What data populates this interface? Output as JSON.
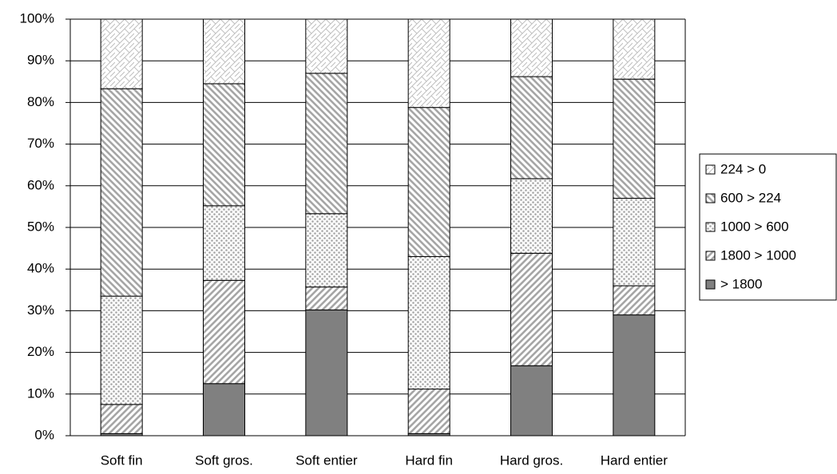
{
  "chart_data": {
    "type": "stacked_bar_100",
    "categories": [
      "Soft fin",
      "Soft gros.",
      "Soft entier",
      "Hard fin",
      "Hard gros.",
      "Hard entier"
    ],
    "series": [
      {
        "name": "> 1800",
        "color": "#808080",
        "pattern": "solid",
        "values": [
          0.5,
          12.5,
          30.2,
          0.5,
          16.8,
          29
        ]
      },
      {
        "name": "1800 > 1000",
        "color": "#a6a6a6",
        "pattern": "diagonal-up",
        "values": [
          7,
          24.8,
          5.5,
          10.7,
          27,
          7
        ]
      },
      {
        "name": "1000 > 600",
        "color": "#a6a6a6",
        "pattern": "dots",
        "values": [
          26,
          17.9,
          17.6,
          31.8,
          17.9,
          21
        ]
      },
      {
        "name": "600 > 224",
        "color": "#a6a6a6",
        "pattern": "diagonal-down",
        "values": [
          49.8,
          29.3,
          33.7,
          35.8,
          24.5,
          28.6
        ]
      },
      {
        "name": "224 > 0",
        "color": "#bfbfbf",
        "pattern": "crosshatch",
        "values": [
          16.7,
          15.5,
          13,
          21.2,
          13.8,
          14.4
        ]
      }
    ],
    "ylim": [
      0,
      100
    ],
    "yticks": [
      {
        "value": 0,
        "label": "0%"
      },
      {
        "value": 10,
        "label": "10%"
      },
      {
        "value": 20,
        "label": "20%"
      },
      {
        "value": 30,
        "label": "30%"
      },
      {
        "value": 40,
        "label": "40%"
      },
      {
        "value": 50,
        "label": "50%"
      },
      {
        "value": 60,
        "label": "60%"
      },
      {
        "value": 70,
        "label": "70%"
      },
      {
        "value": 80,
        "label": "80%"
      },
      {
        "value": 90,
        "label": "90%"
      },
      {
        "value": 100,
        "label": "100%"
      }
    ],
    "grid": true,
    "legend": "right"
  }
}
